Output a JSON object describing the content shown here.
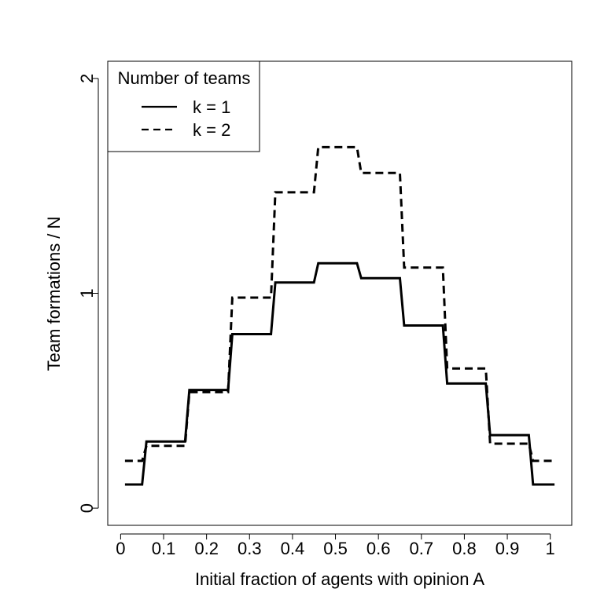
{
  "chart_data": {
    "type": "line",
    "xlabel": "Initial fraction of agents with opinion A",
    "ylabel": "Team formations / N",
    "xlim": [
      -0.03,
      1.05
    ],
    "ylim": [
      -0.08,
      2.08
    ],
    "x_ticks": [
      0,
      0.1,
      0.2,
      0.3,
      0.4,
      0.5,
      0.6,
      0.7,
      0.8,
      0.9,
      1
    ],
    "x_tick_labels": [
      "0",
      "0.1",
      "0.2",
      "0.3",
      "0.4",
      "0.5",
      "0.6",
      "0.7",
      "0.8",
      "0.9",
      "1"
    ],
    "y_ticks": [
      0,
      1,
      2
    ],
    "y_tick_labels": [
      "0",
      "1",
      "2"
    ],
    "grid": false,
    "legend": {
      "title": "Number of teams",
      "position": "top-left",
      "entries": [
        {
          "label": "k = 1",
          "style": "solid"
        },
        {
          "label": "k = 2",
          "style": "dashed"
        }
      ]
    },
    "series": [
      {
        "name": "k = 1",
        "style": "solid",
        "x": [
          0.01,
          0.05,
          0.06,
          0.15,
          0.16,
          0.25,
          0.26,
          0.35,
          0.36,
          0.45,
          0.46,
          0.55,
          0.56,
          0.65,
          0.66,
          0.75,
          0.76,
          0.85,
          0.86,
          0.95,
          0.96,
          1.01
        ],
        "y": [
          0.11,
          0.11,
          0.31,
          0.31,
          0.55,
          0.55,
          0.81,
          0.81,
          1.05,
          1.05,
          1.14,
          1.14,
          1.07,
          1.07,
          0.85,
          0.85,
          0.58,
          0.58,
          0.34,
          0.34,
          0.11,
          0.11
        ]
      },
      {
        "name": "k = 2",
        "style": "dashed",
        "x": [
          0.01,
          0.05,
          0.06,
          0.15,
          0.16,
          0.25,
          0.26,
          0.35,
          0.36,
          0.45,
          0.46,
          0.55,
          0.56,
          0.65,
          0.66,
          0.75,
          0.76,
          0.85,
          0.86,
          0.95,
          0.96,
          1.01
        ],
        "y": [
          0.22,
          0.22,
          0.29,
          0.29,
          0.54,
          0.54,
          0.98,
          0.98,
          1.47,
          1.47,
          1.68,
          1.68,
          1.56,
          1.56,
          1.12,
          1.12,
          0.65,
          0.65,
          0.3,
          0.3,
          0.22,
          0.22
        ]
      }
    ]
  }
}
